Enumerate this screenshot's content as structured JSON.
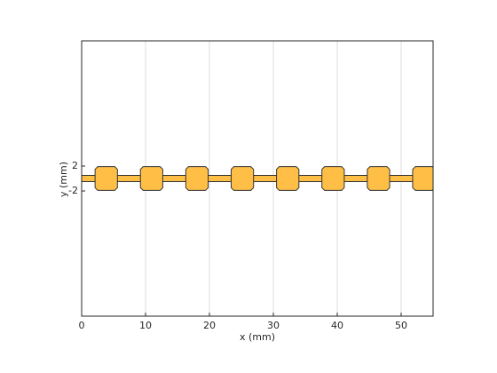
{
  "chart_data": {
    "type": "layout",
    "xlabel": "x (mm)",
    "ylabel": "y (mm)",
    "xlim": [
      0,
      55
    ],
    "ylim": [
      -22.1,
      22.1
    ],
    "xticks": [
      0,
      10,
      20,
      30,
      40,
      50
    ],
    "yticks": [
      -2,
      2
    ],
    "grid": true,
    "color": "#ffbf47",
    "edge_color": "#333333",
    "strip": {
      "x": [
        0,
        55
      ],
      "width": 1
    },
    "pads": {
      "x": [
        3.85,
        10.95,
        18.05,
        25.15,
        32.25,
        39.35,
        46.45,
        53.55
      ],
      "width": 3.5,
      "height": 3.8
    }
  }
}
